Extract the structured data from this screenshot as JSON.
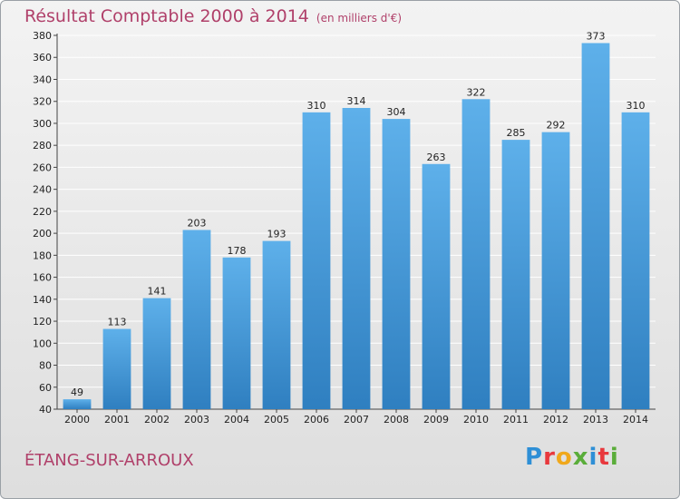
{
  "header": {
    "title": "Résultat Comptable 2000 à 2014",
    "unit": "(en milliers d'€)"
  },
  "footer": {
    "town": "ÉTANG-SUR-ARROUX",
    "logo": {
      "p": "P",
      "r": "r",
      "o": "o",
      "x": "x",
      "i": "i",
      "t": "t",
      "i2": "i"
    }
  },
  "colors": {
    "bar_top": "#5eb0ea",
    "bar_bottom": "#2f7fc0",
    "title": "#b0406a",
    "grid": "#ffffff"
  },
  "chart_data": {
    "type": "bar",
    "title": "Résultat Comptable 2000 à 2014",
    "ylabel": "(en milliers d'€)",
    "xlabel": "",
    "categories": [
      "2000",
      "2001",
      "2002",
      "2003",
      "2004",
      "2005",
      "2006",
      "2007",
      "2008",
      "2009",
      "2010",
      "2011",
      "2012",
      "2013",
      "2014"
    ],
    "values": [
      49,
      113,
      141,
      203,
      178,
      193,
      310,
      314,
      304,
      263,
      322,
      285,
      292,
      373,
      310
    ],
    "ylim": [
      40,
      380
    ],
    "yticks": [
      40,
      60,
      80,
      100,
      120,
      140,
      160,
      180,
      200,
      220,
      240,
      260,
      280,
      300,
      320,
      340,
      360,
      380
    ],
    "grid": true
  }
}
